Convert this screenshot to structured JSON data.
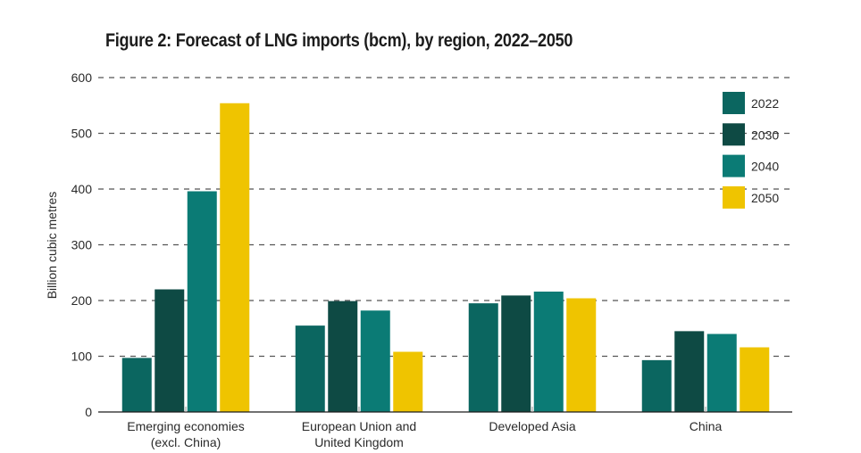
{
  "chart_data": {
    "type": "bar",
    "title": "Figure 2: Forecast of LNG imports (bcm), by region, 2022–2050",
    "xlabel": "",
    "ylabel": "Billion cubic metres",
    "ylim": [
      0,
      600
    ],
    "yticks": [
      0,
      100,
      200,
      300,
      400,
      500,
      600
    ],
    "grid": true,
    "grid_style": "dashed",
    "legend_position": "top-right",
    "categories": [
      [
        "Emerging economies",
        "(excl. China)"
      ],
      [
        "European Union and",
        "United Kingdom"
      ],
      [
        "Developed Asia"
      ],
      [
        "China"
      ]
    ],
    "series": [
      {
        "name": "2022",
        "color": "#0b6660",
        "values": [
          97,
          155,
          195,
          93
        ]
      },
      {
        "name": "2030",
        "color": "#0e4a44",
        "values": [
          220,
          199,
          209,
          145
        ]
      },
      {
        "name": "2040",
        "color": "#0b7b75",
        "values": [
          396,
          182,
          216,
          140
        ]
      },
      {
        "name": "2050",
        "color": "#efc400",
        "values": [
          554,
          108,
          204,
          116
        ]
      }
    ]
  }
}
